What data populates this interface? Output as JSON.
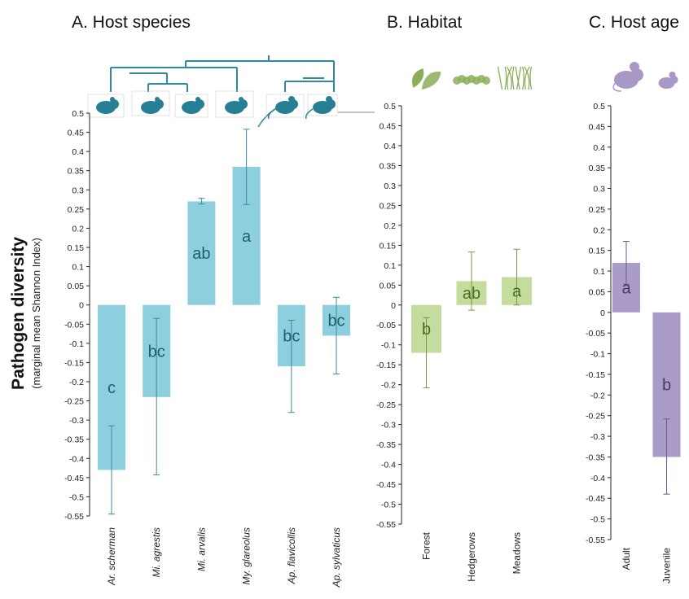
{
  "y_axis": {
    "label": "Pathogen diversity",
    "sublabel": "(marginal mean Shannon Index)"
  },
  "chart_data": [
    {
      "type": "bar",
      "title": "A. Host species",
      "categories": [
        "Ar. scherman",
        "Mi. agrestis",
        "Mi. arvalis",
        "My. glareolus",
        "Ap. flavicollis",
        "Ap. sylvaticus"
      ],
      "italic_categories": true,
      "values": [
        -0.43,
        -0.24,
        0.27,
        0.36,
        -0.16,
        -0.08
      ],
      "err_low": [
        -0.545,
        -0.443,
        0.263,
        0.262,
        -0.28,
        -0.18
      ],
      "err_high": [
        -0.315,
        -0.035,
        0.278,
        0.458,
        -0.04,
        0.02
      ],
      "group_letters": [
        "c",
        "bc",
        "ab",
        "a",
        "bc",
        "bc"
      ],
      "ylim": [
        -0.55,
        0.5
      ],
      "tick_step": 0.05,
      "bar_color": "#8ecfdf",
      "error_color": "#3a8ca0",
      "letter_color": "#1c5f6e",
      "icons": [
        "vole-icon",
        "vole-icon",
        "vole-icon",
        "vole-icon",
        "mouse-icon",
        "mouse-icon"
      ],
      "icon_color": "#267f95",
      "phylogeny_color": "#2f8aa0"
    },
    {
      "type": "bar",
      "title": "B. Habitat",
      "categories": [
        "Forest",
        "Hedgerows",
        "Meadows"
      ],
      "italic_categories": false,
      "values": [
        -0.12,
        0.06,
        0.07
      ],
      "err_low": [
        -0.208,
        -0.013,
        0.0
      ],
      "err_high": [
        -0.032,
        0.133,
        0.14
      ],
      "group_letters": [
        "b",
        "ab",
        "a"
      ],
      "ylim": [
        -0.55,
        0.5
      ],
      "tick_step": 0.05,
      "bar_color": "#c4dd9e",
      "error_color": "#7a9a3c",
      "letter_color": "#4a6a24",
      "icons": [
        "leaf-icon",
        "hedge-icon",
        "grass-icon"
      ],
      "icon_color": "#8cae5a"
    },
    {
      "type": "bar",
      "title": "C. Host age",
      "categories": [
        "Adult",
        "Juvenile"
      ],
      "italic_categories": false,
      "values": [
        0.12,
        -0.35
      ],
      "err_low": [
        0.068,
        -0.44
      ],
      "err_high": [
        0.172,
        -0.258
      ],
      "group_letters": [
        "a",
        "b"
      ],
      "ylim": [
        -0.55,
        0.5
      ],
      "tick_step": 0.05,
      "bar_color": "#ab9bc9",
      "error_color": "#6a5a8f",
      "letter_color": "#4a3a6a",
      "icons": [
        "adult-mouse-icon",
        "juvenile-mouse-icon"
      ],
      "icon_color": "#a898c6"
    }
  ]
}
